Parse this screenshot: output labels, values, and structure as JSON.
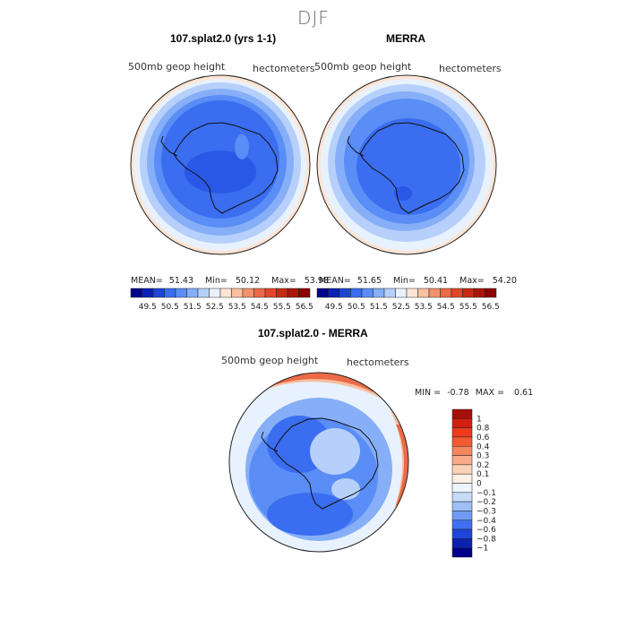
{
  "page": {
    "title": "DJF"
  },
  "panels": [
    {
      "title": "107.splat2.0 (yrs 1-1)",
      "field": "500mb geop height",
      "units": "hectometers",
      "stats": {
        "mean": "51.43",
        "min": "50.12",
        "max": "53.98"
      },
      "stats_labels": {
        "mean": "MEAN=",
        "min": "Min=",
        "max": "Max="
      }
    },
    {
      "title": "MERRA",
      "field": "500mb geop height",
      "units": "hectometers",
      "stats": {
        "mean": "51.65",
        "min": "50.41",
        "max": "54.20"
      },
      "stats_labels": {
        "mean": "MEAN=",
        "min": "Min=",
        "max": "Max="
      }
    },
    {
      "title": "107.splat2.0 - MERRA",
      "field": "500mb geop height",
      "units": "hectometers",
      "stats_text": {
        "min_label": "MIN =",
        "min": "-0.78",
        "max_label": "MAX =",
        "max": "0.61"
      }
    }
  ],
  "colorbar_horizontal": {
    "labels": [
      "49.5",
      "50.5",
      "51.5",
      "52.5",
      "53.5",
      "54.5",
      "55.5",
      "56.5"
    ],
    "colors": [
      "#00008b",
      "#0a1fb4",
      "#1e44d6",
      "#3a6df0",
      "#5a8df5",
      "#86aff8",
      "#b6d0fb",
      "#e8f2fe",
      "#fde4d4",
      "#f8bfa0",
      "#f2916c",
      "#ec6a47",
      "#e2452a",
      "#c62a12",
      "#a8160a",
      "#8b0000"
    ]
  },
  "colorbar_vertical": {
    "labels": [
      "1",
      "0.8",
      "0.6",
      "0.4",
      "0.3",
      "0.2",
      "0.1",
      "0",
      "−0.1",
      "−0.2",
      "−0.3",
      "−0.4",
      "−0.6",
      "−0.8",
      "−1"
    ],
    "colors": [
      "#a50f0a",
      "#d21f10",
      "#ec3a1a",
      "#f25a32",
      "#f5875e",
      "#f8ab88",
      "#fbd2b8",
      "#fdf0e6",
      "#eef4fd",
      "#c6dbfa",
      "#9dbff6",
      "#6f9cf2",
      "#3f6ff0",
      "#1e45d8",
      "#0b22b0",
      "#00008b"
    ]
  },
  "map_colors": {
    "deep_blue": "#2a58e6",
    "mid_blue": "#3a6df0",
    "light_blue": "#5a8df5",
    "pale_blue": "#86aff8",
    "very_pale_blue": "#b6d0fb",
    "near_white": "#e8f2fe",
    "pale_red": "#fde4d4",
    "light_red": "#f8bfa0",
    "red": "#ec6a47",
    "dark_red": "#e2452a"
  }
}
